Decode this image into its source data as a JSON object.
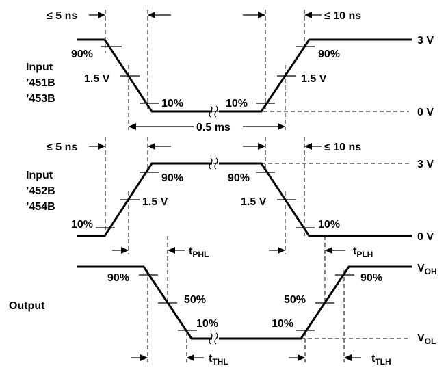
{
  "levels": {
    "v3": "3 V",
    "v0": "0 V",
    "voh_main": "V",
    "voh_sub": "OH",
    "vol_main": "V",
    "vol_sub": "OL"
  },
  "input1": {
    "title": [
      "Input",
      "’451B",
      "’453B"
    ],
    "rise_fall_left": "≤ 5 ns",
    "rise_fall_right": "≤ 10 ns",
    "pct_high_left": "90%",
    "mid_left": "1.5 V",
    "pct_low_left": "10%",
    "pct_low_right": "10%",
    "mid_right": "1.5 V",
    "pct_high_right": "90%",
    "pulse_width": "0.5 ms"
  },
  "input2": {
    "title": [
      "Input",
      "’452B",
      "’454B"
    ],
    "rise_fall_left": "≤ 5 ns",
    "rise_fall_right": "≤ 10 ns",
    "pct_low_left": "10%",
    "mid_left": "1.5 V",
    "pct_high_left": "90%",
    "pct_high_right": "90%",
    "mid_right": "1.5 V",
    "pct_low_right": "10%"
  },
  "delays": {
    "tphl_main": "t",
    "tphl_sub": "PHL",
    "tplh_main": "t",
    "tplh_sub": "PLH"
  },
  "output": {
    "title": "Output",
    "pct_high_left": "90%",
    "mid_left": "50%",
    "pct_low_left": "10%",
    "pct_low_right": "10%",
    "mid_right": "50%",
    "pct_high_right": "90%",
    "tthl_main": "t",
    "tthl_sub": "THL",
    "ttlh_main": "t",
    "ttlh_sub": "TLH"
  }
}
